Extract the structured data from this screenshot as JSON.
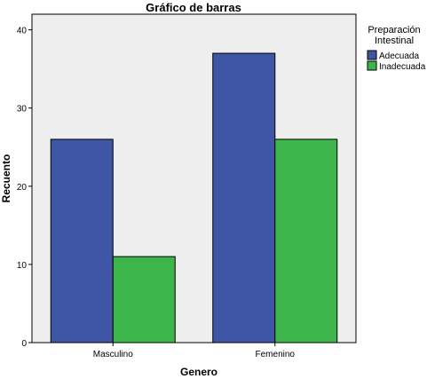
{
  "chart_data": {
    "type": "bar",
    "title": "Gráfico de barras",
    "xlabel": "Genero",
    "ylabel": "Recuento",
    "categories": [
      "Masculino",
      "Femenino"
    ],
    "series": [
      {
        "name": "Adecuada",
        "values": [
          26,
          37
        ],
        "color": "#3f55a6"
      },
      {
        "name": "Inadecuada",
        "values": [
          11,
          26
        ],
        "color": "#3cb64a"
      }
    ],
    "legend_title": [
      "Preparación",
      "Intestinal"
    ],
    "ylim": [
      0,
      42
    ],
    "yticks": [
      0,
      10,
      20,
      30,
      40
    ],
    "plot_background": "#eeeeee",
    "legend_position": "top-right"
  }
}
